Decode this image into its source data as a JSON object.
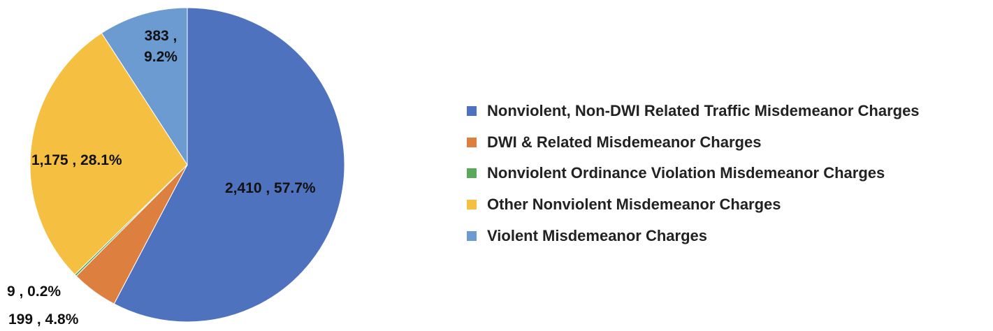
{
  "chart_data": {
    "type": "pie",
    "categories": [
      "Nonviolent, Non-DWI Related Traffic Misdemeanor Charges",
      "DWI & Related Misdemeanor Charges",
      "Nonviolent Ordinance Violation Misdemeanor Charges",
      "Other Nonviolent Misdemeanor Charges",
      "Violent Misdemeanor Charges"
    ],
    "values": [
      2410,
      199,
      9,
      1175,
      383
    ],
    "value_labels": [
      "2,410 , 57.7%",
      "199 , 4.8%",
      "9 , 0.2%",
      "1,175 , 28.1%",
      "383 , 9.2%"
    ],
    "colors": [
      "#4f72be",
      "#dd7f3f",
      "#5aa85a",
      "#f5bf42",
      "#6b9bd1"
    ],
    "legend": "right"
  }
}
